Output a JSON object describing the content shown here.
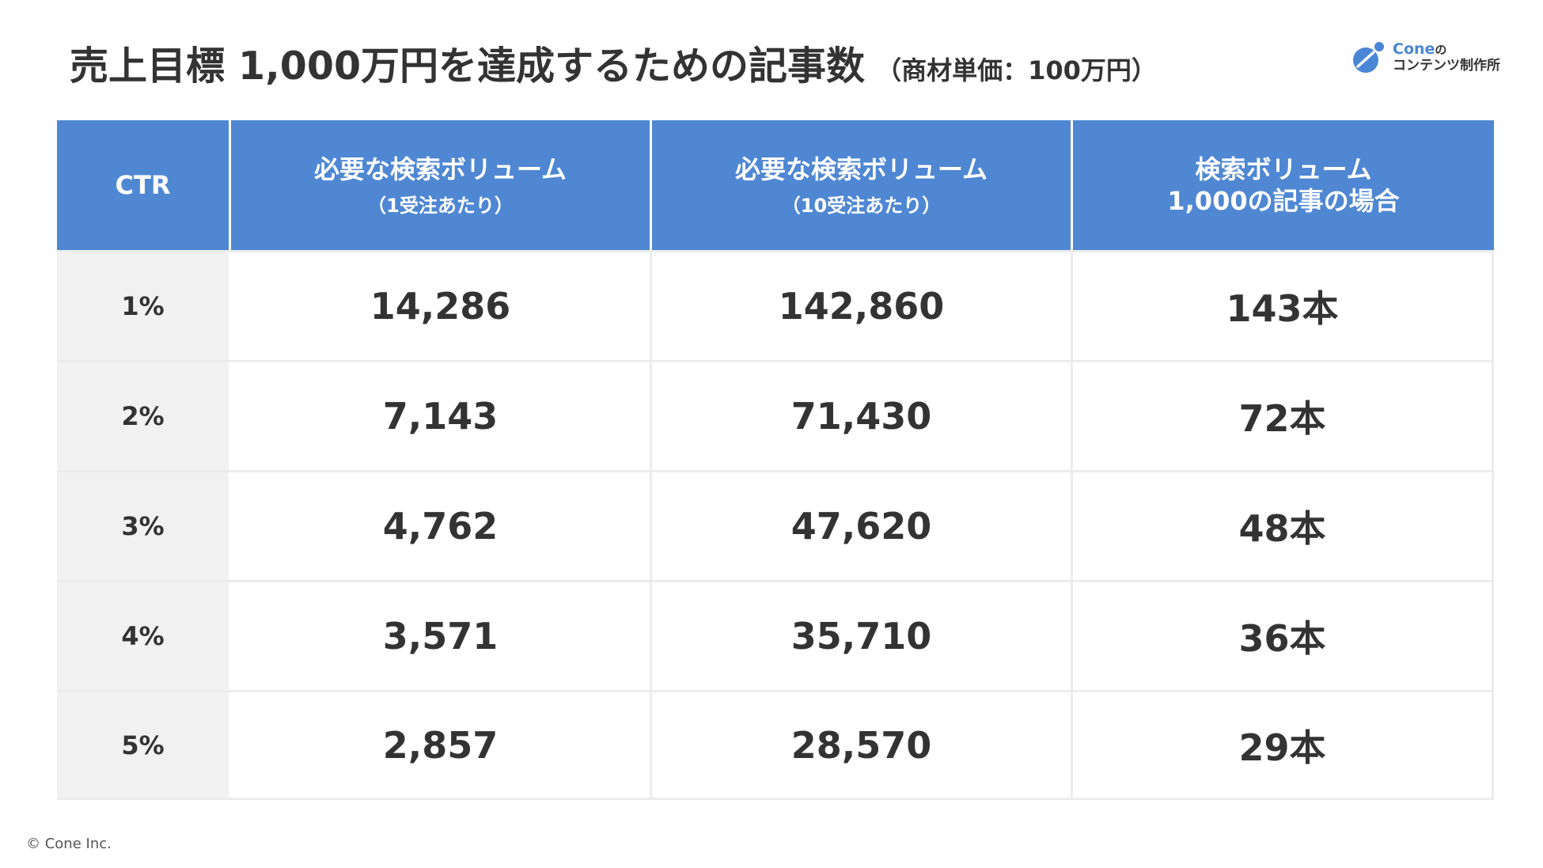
{
  "title": {
    "main": "売上目標 1,000万円を達成するための記事数",
    "sub": "（商材単価：100万円）"
  },
  "logo": {
    "name": "Cone",
    "particle": "の",
    "tagline": "コンテンツ制作所",
    "accent_color": "#4a86d6"
  },
  "table": {
    "header_color": "#4f87d3",
    "headers": [
      {
        "main": "CTR",
        "sub": ""
      },
      {
        "main": "必要な検索ボリューム",
        "sub": "（1受注あたり）"
      },
      {
        "main": "必要な検索ボリューム",
        "sub": "（10受注あたり）"
      },
      {
        "main": "検索ボリューム\n1,000の記事の場合",
        "sub": ""
      }
    ],
    "rows": [
      {
        "ctr": "1%",
        "vol1": "14,286",
        "vol10": "142,860",
        "articles": "143本"
      },
      {
        "ctr": "2%",
        "vol1": "7,143",
        "vol10": "71,430",
        "articles": "72本"
      },
      {
        "ctr": "3%",
        "vol1": "4,762",
        "vol10": "47,620",
        "articles": "48本"
      },
      {
        "ctr": "4%",
        "vol1": "3,571",
        "vol10": "35,710",
        "articles": "36本"
      },
      {
        "ctr": "5%",
        "vol1": "2,857",
        "vol10": "28,570",
        "articles": "29本"
      }
    ]
  },
  "footer": {
    "copyright": "© Cone Inc."
  }
}
